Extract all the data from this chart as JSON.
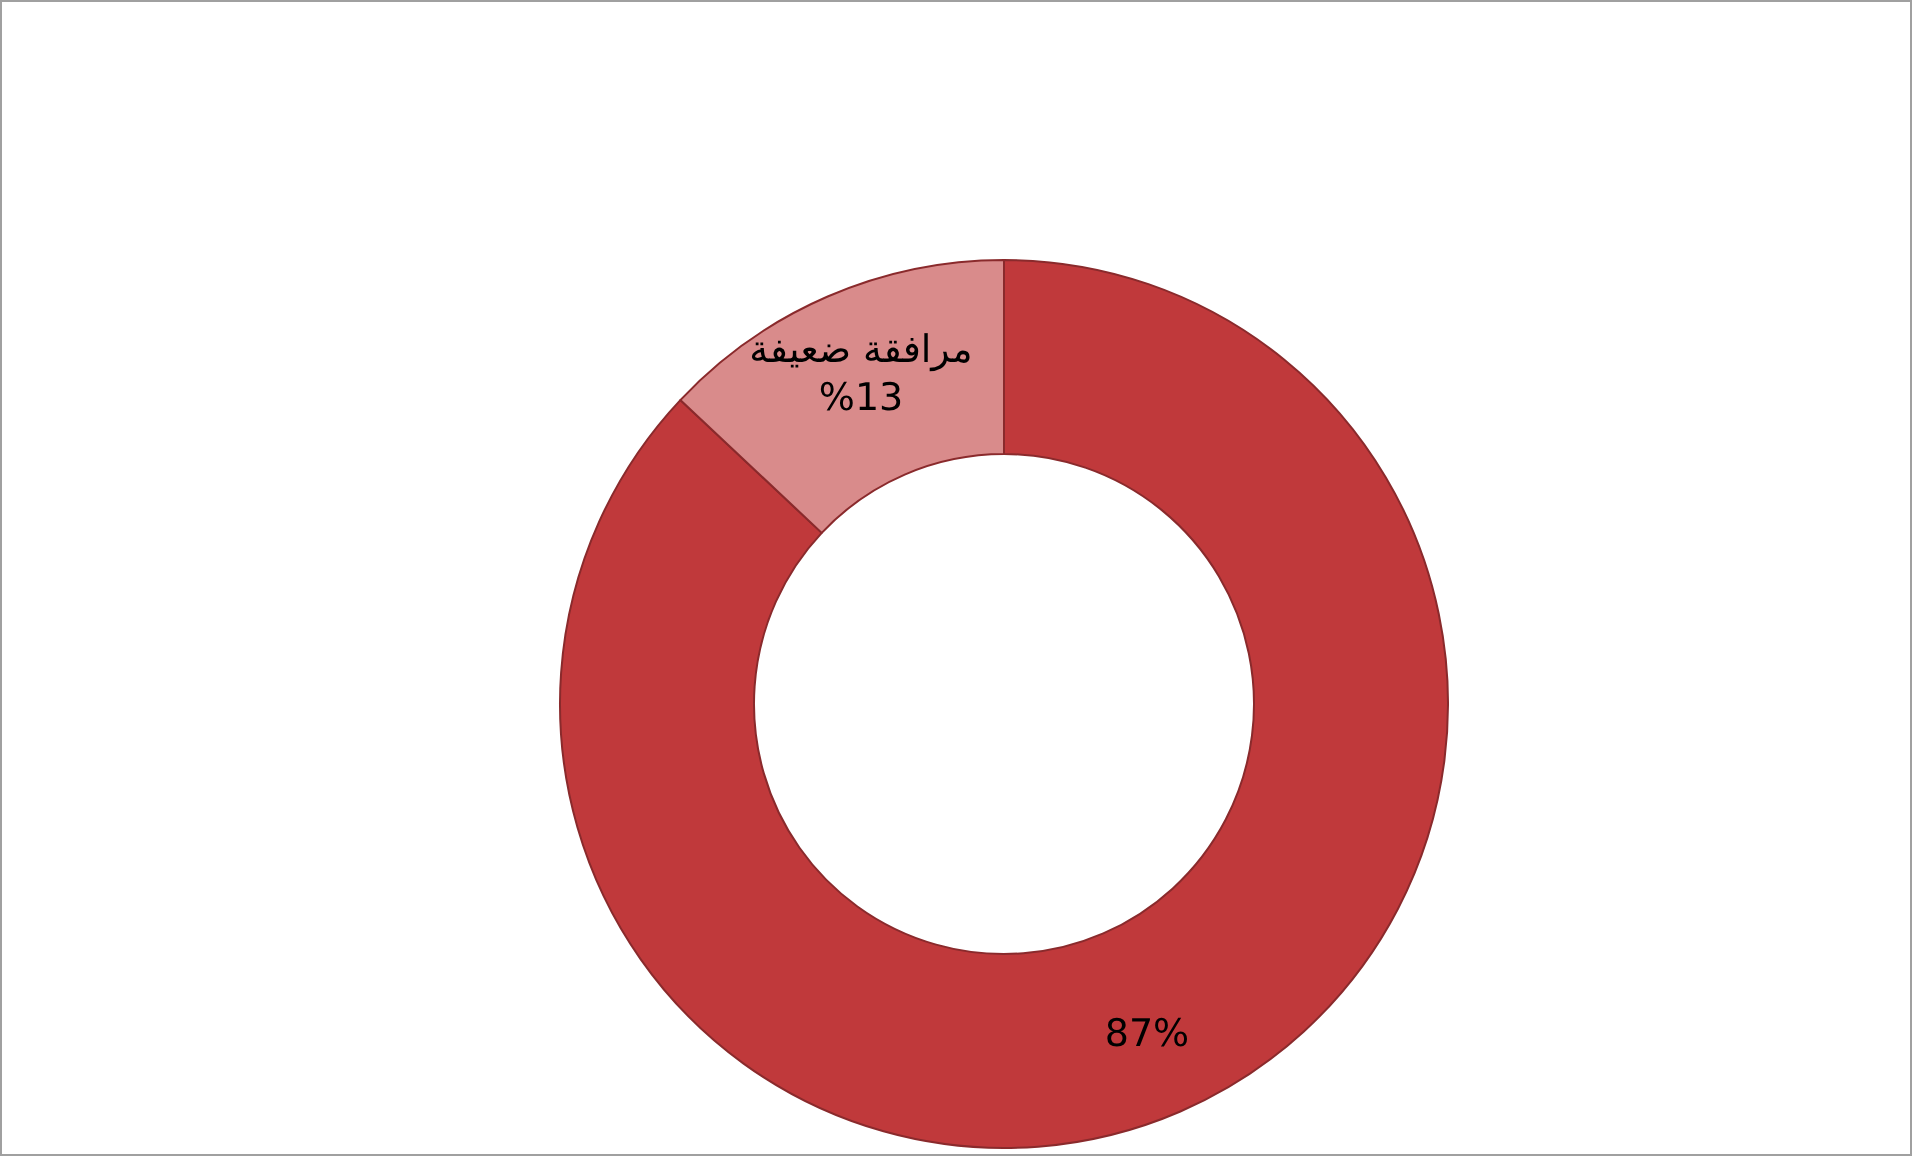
{
  "chart_data": {
    "type": "donut",
    "categories": [
      null,
      "مرافقة ضعيفة"
    ],
    "values": [
      87,
      13
    ],
    "colors": [
      "#c0393b",
      "#d98b8b"
    ],
    "value_labels": [
      "87%",
      "%13"
    ]
  }
}
